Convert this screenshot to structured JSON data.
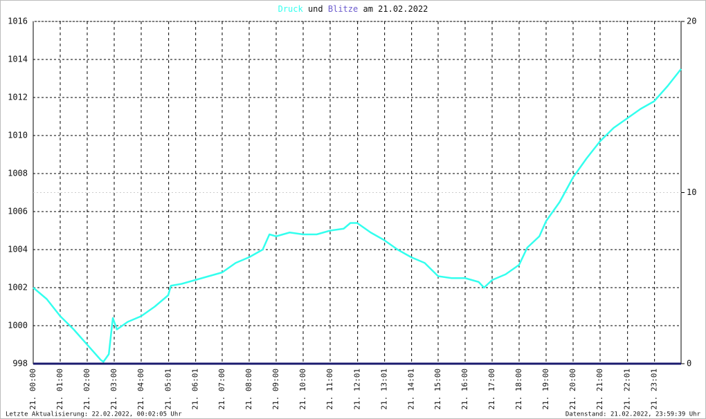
{
  "chart_data": {
    "type": "line",
    "title_parts": [
      "und",
      "am 21.02.2022"
    ],
    "x": [
      0,
      0.5,
      1,
      1.5,
      2,
      2.5,
      2.6,
      2.8,
      2.95,
      3.1,
      3.5,
      4,
      4.5,
      5,
      5.1,
      5.5,
      6,
      6.5,
      7,
      7.5,
      8,
      8.5,
      8.75,
      9,
      9.5,
      10,
      10.5,
      11,
      11.5,
      11.75,
      12,
      12.5,
      13,
      13.5,
      14,
      14.5,
      15,
      15.5,
      16,
      16.5,
      16.7,
      17,
      17.5,
      18,
      18.3,
      18.75,
      19,
      19.5,
      20,
      20.5,
      21,
      21.5,
      22,
      22.5,
      23,
      23.5,
      24
    ],
    "series": [
      {
        "name": "Druck",
        "color": "#33ffee",
        "values": [
          1002.0,
          1001.4,
          1000.5,
          999.8,
          999.0,
          998.2,
          998.1,
          998.5,
          1000.4,
          999.8,
          1000.2,
          1000.5,
          1001.0,
          1001.6,
          1002.1,
          1002.2,
          1002.4,
          1002.6,
          1002.8,
          1003.3,
          1003.6,
          1004.0,
          1004.8,
          1004.7,
          1004.9,
          1004.8,
          1004.8,
          1005.0,
          1005.1,
          1005.4,
          1005.4,
          1004.9,
          1004.5,
          1004.0,
          1003.6,
          1003.3,
          1002.6,
          1002.5,
          1002.5,
          1002.3,
          1002.0,
          1002.4,
          1002.7,
          1003.2,
          1004.1,
          1004.7,
          1005.5,
          1006.5,
          1007.8,
          1008.8,
          1009.7,
          1010.4,
          1010.9,
          1011.4,
          1011.8,
          1012.6,
          1013.5
        ]
      },
      {
        "name": "Blitze",
        "color": "#1a1a6e",
        "axis": "y2",
        "values": [
          0,
          0,
          0,
          0,
          0,
          0,
          0,
          0,
          0,
          0,
          0,
          0,
          0,
          0,
          0,
          0,
          0,
          0,
          0,
          0,
          0,
          0,
          0,
          0,
          0,
          0,
          0,
          0,
          0,
          0,
          0,
          0,
          0,
          0,
          0,
          0,
          0,
          0,
          0,
          0,
          0,
          0,
          0,
          0,
          0,
          0,
          0,
          0,
          0,
          0,
          0,
          0,
          0,
          0,
          0,
          0,
          0
        ]
      }
    ],
    "xlim": [
      0,
      24
    ],
    "xticks": [
      {
        "value": 0,
        "label": "21. 00:00"
      },
      {
        "value": 1,
        "label": "21. 01:00"
      },
      {
        "value": 2,
        "label": "21. 02:00"
      },
      {
        "value": 3,
        "label": "21. 03:00"
      },
      {
        "value": 4,
        "label": "21. 04:00"
      },
      {
        "value": 5.0167,
        "label": "21. 05:01"
      },
      {
        "value": 6.0167,
        "label": "21. 06:01"
      },
      {
        "value": 7,
        "label": "21. 07:00"
      },
      {
        "value": 8,
        "label": "21. 08:00"
      },
      {
        "value": 9,
        "label": "21. 09:00"
      },
      {
        "value": 10,
        "label": "21. 10:00"
      },
      {
        "value": 11,
        "label": "21. 11:00"
      },
      {
        "value": 12.0167,
        "label": "21. 12:01"
      },
      {
        "value": 13.0167,
        "label": "21. 13:01"
      },
      {
        "value": 14.0167,
        "label": "21. 14:01"
      },
      {
        "value": 15,
        "label": "21. 15:00"
      },
      {
        "value": 16,
        "label": "21. 16:00"
      },
      {
        "value": 17,
        "label": "21. 17:00"
      },
      {
        "value": 18,
        "label": "21. 18:00"
      },
      {
        "value": 19,
        "label": "21. 19:00"
      },
      {
        "value": 20,
        "label": "21. 20:00"
      },
      {
        "value": 21,
        "label": "21. 21:00"
      },
      {
        "value": 22.0167,
        "label": "21. 22:01"
      },
      {
        "value": 23.0167,
        "label": "21. 23:01"
      }
    ],
    "ylim": [
      998,
      1016
    ],
    "yticks": [
      998,
      1000,
      1002,
      1004,
      1006,
      1008,
      1010,
      1012,
      1014,
      1016
    ],
    "y2lim": [
      0,
      20
    ],
    "y2ticks": [
      0,
      10,
      20
    ],
    "grid": true
  },
  "footer": {
    "left": "Letzte Aktualisierung: 22.02.2022, 00:02:05 Uhr",
    "right": "Datenstand: 21.02.2022, 23:59:39 Uhr"
  }
}
